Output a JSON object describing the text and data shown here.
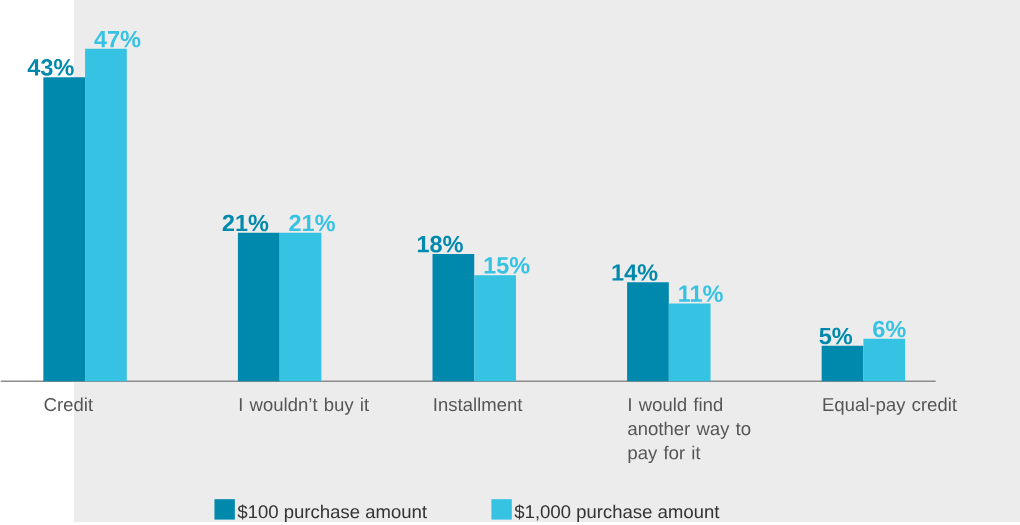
{
  "chart_data": {
    "type": "bar",
    "categories": [
      "Credit",
      "I wouldn’t buy it",
      "Installment",
      "I would find another way to pay for it",
      "Equal-pay credit"
    ],
    "series": [
      {
        "name": "$100 purchase amount",
        "color": "#0089ad",
        "values": [
          43,
          21,
          18,
          14,
          5
        ],
        "value_labels": [
          "43%",
          "21%",
          "18%",
          "14%",
          "5%"
        ]
      },
      {
        "name": "$1,000 purchase amount",
        "color": "#36c2e3",
        "values": [
          47,
          21,
          15,
          11,
          6
        ],
        "value_labels": [
          "47%",
          "21%",
          "15%",
          "11%",
          "6%"
        ]
      }
    ],
    "legend": "bottom"
  }
}
